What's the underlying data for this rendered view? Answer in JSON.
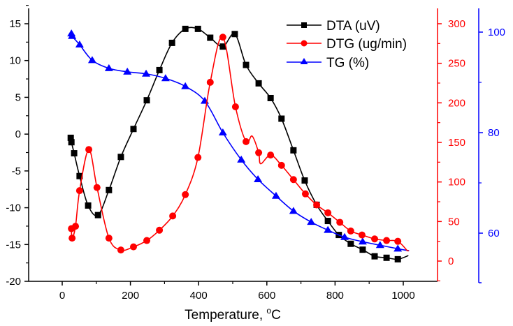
{
  "chart_data": {
    "type": "line",
    "title": "",
    "xlabel": "Temperature, °C",
    "xlabel_main": "Temperature, ",
    "xlabel_sup": "o",
    "xlabel_unit": "C",
    "xlim": [
      -105,
      1100
    ],
    "xticks": [
      0,
      200,
      400,
      600,
      800,
      1000
    ],
    "xtick_labels": [
      "0",
      "200",
      "400",
      "600",
      "800",
      "1000"
    ],
    "axes": {
      "left": {
        "ylim": [
          -20,
          17.5
        ],
        "ticks": [
          -20,
          -15,
          -10,
          -5,
          0,
          5,
          10,
          15
        ],
        "tick_labels": [
          "-20",
          "-15",
          "-10",
          "-5",
          "0",
          "5",
          "10",
          "15"
        ],
        "color": "#000000",
        "series": "DTA (uV)"
      },
      "right_red": {
        "ylim": [
          -27,
          320
        ],
        "ticks": [
          0,
          50,
          100,
          150,
          200,
          250,
          300
        ],
        "tick_labels": [
          "0",
          "50",
          "100",
          "150",
          "200",
          "250",
          "300"
        ],
        "color": "#ff0000",
        "series": "DTG (ug/min)"
      },
      "right_blue": {
        "ylim": [
          50.3,
          104.7
        ],
        "ticks": [
          60,
          80,
          100
        ],
        "tick_labels": [
          "60",
          "80",
          "100"
        ],
        "minor_ticks": [
          70,
          90
        ],
        "color": "#0000ff",
        "series": "TG (%)"
      }
    },
    "legend": {
      "position": "top-right",
      "entries": [
        "DTA (uV)",
        "DTG (ug/min)",
        "TG (%)"
      ]
    },
    "grid": false,
    "series": [
      {
        "name": "DTA (uV)",
        "axis": "left",
        "color": "#000000",
        "marker": "square",
        "x": [
          25,
          27,
          35,
          51,
          76,
          105,
          137,
          172,
          209,
          248,
          285,
          322,
          361,
          398,
          434,
          471,
          506,
          539,
          576,
          611,
          643,
          678,
          711,
          746,
          779,
          811,
          846,
          881,
          916,
          951,
          984
        ],
        "y": [
          -0.5,
          -1.1,
          -2.6,
          -5.7,
          -9.7,
          -11.0,
          -7.6,
          -3.1,
          0.7,
          4.6,
          8.7,
          12.4,
          14.3,
          14.3,
          13.1,
          11.9,
          13.6,
          9.4,
          6.9,
          4.9,
          2.1,
          -2.2,
          -6.3,
          -9.6,
          -11.8,
          -13.7,
          -14.9,
          -15.7,
          -16.6,
          -16.8,
          -17.0
        ],
        "line_end": [
          1015,
          -16.5
        ]
      },
      {
        "name": "DTG (ug/min)",
        "axis": "right_red",
        "color": "#ff0000",
        "marker": "circle",
        "x": [
          27,
          29,
          39,
          51,
          78,
          102,
          137,
          172,
          209,
          248,
          285,
          324,
          361,
          398,
          434,
          471,
          508,
          539,
          576,
          611,
          643,
          678,
          713,
          746,
          779,
          814,
          846,
          879,
          916,
          951,
          984
        ],
        "y": [
          41,
          29,
          44,
          89,
          141,
          93,
          29,
          14,
          18,
          26,
          39,
          57,
          84,
          131,
          226,
          283,
          195,
          151,
          137,
          134,
          121,
          103,
          85,
          71,
          61,
          49,
          38,
          33,
          28,
          26,
          25
        ],
        "features": {
          "bump_peak": [
            557,
            158
          ],
          "dip": [
            582,
            123
          ]
        },
        "line_end": [
          1012,
          13
        ]
      },
      {
        "name": "TG (%)",
        "axis": "right_blue",
        "color": "#0000ff",
        "marker": "triangle",
        "x": [
          27,
          29,
          51,
          88,
          137,
          191,
          246,
          303,
          361,
          418,
          471,
          525,
          574,
          627,
          678,
          730,
          779,
          828,
          881,
          932,
          984
        ],
        "y": [
          99.7,
          99.2,
          97.5,
          94.4,
          92.8,
          92.1,
          91.7,
          90.8,
          89.2,
          86.3,
          80.0,
          74.6,
          70.7,
          67.4,
          64.4,
          62.2,
          60.6,
          59.2,
          58.3,
          57.6,
          56.9
        ],
        "line_end": [
          1017,
          56.5
        ]
      }
    ]
  }
}
